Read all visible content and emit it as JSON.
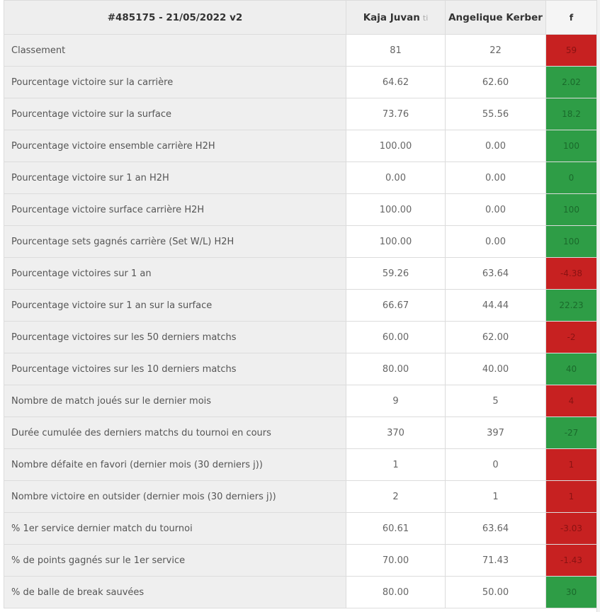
{
  "header": {
    "match": "#485175 - 21/05/2022 v2",
    "player1": "Kaja Juvan",
    "player1_suffix": "ti",
    "player2": "Angelique Kerber",
    "diff": "f"
  },
  "colors": {
    "red": "#c72121",
    "green": "#2e9d46"
  },
  "rows": [
    {
      "label": "Classement",
      "p1": "81",
      "p2": "22",
      "diff": "59",
      "status": "red"
    },
    {
      "label": "Pourcentage victoire sur la carrière",
      "p1": "64.62",
      "p2": "62.60",
      "diff": "2.02",
      "status": "green"
    },
    {
      "label": "Pourcentage victoire sur la surface",
      "p1": "73.76",
      "p2": "55.56",
      "diff": "18.2",
      "status": "green"
    },
    {
      "label": "Pourcentage victoire ensemble carrière H2H",
      "p1": "100.00",
      "p2": "0.00",
      "diff": "100",
      "status": "green"
    },
    {
      "label": "Pourcentage victoire sur 1 an H2H",
      "p1": "0.00",
      "p2": "0.00",
      "diff": "0",
      "status": "green"
    },
    {
      "label": "Pourcentage victoire surface carrière H2H",
      "p1": "100.00",
      "p2": "0.00",
      "diff": "100",
      "status": "green"
    },
    {
      "label": "Pourcentage sets gagnés carrière (Set W/L) H2H",
      "p1": "100.00",
      "p2": "0.00",
      "diff": "100",
      "status": "green"
    },
    {
      "label": "Pourcentage victoires sur 1 an",
      "p1": "59.26",
      "p2": "63.64",
      "diff": "-4.38",
      "status": "red"
    },
    {
      "label": "Pourcentage victoire sur 1 an sur la surface",
      "p1": "66.67",
      "p2": "44.44",
      "diff": "22.23",
      "status": "green"
    },
    {
      "label": "Pourcentage victoires sur les 50 derniers matchs",
      "p1": "60.00",
      "p2": "62.00",
      "diff": "-2",
      "status": "red"
    },
    {
      "label": "Pourcentage victoires sur les 10 derniers matchs",
      "p1": "80.00",
      "p2": "40.00",
      "diff": "40",
      "status": "green"
    },
    {
      "label": "Nombre de match joués sur le dernier mois",
      "p1": "9",
      "p2": "5",
      "diff": "4",
      "status": "red"
    },
    {
      "label": "Durée cumulée des derniers matchs du tournoi en cours",
      "p1": "370",
      "p2": "397",
      "diff": "-27",
      "status": "green"
    },
    {
      "label": "Nombre défaite en favori (dernier mois (30 derniers j))",
      "p1": "1",
      "p2": "0",
      "diff": "1",
      "status": "red"
    },
    {
      "label": "Nombre victoire en outsider (dernier mois (30 derniers j))",
      "p1": "2",
      "p2": "1",
      "diff": "1",
      "status": "red"
    },
    {
      "label": "% 1er service dernier match du tournoi",
      "p1": "60.61",
      "p2": "63.64",
      "diff": "-3.03",
      "status": "red"
    },
    {
      "label": "% de points gagnés sur le 1er service",
      "p1": "70.00",
      "p2": "71.43",
      "diff": "-1.43",
      "status": "red"
    },
    {
      "label": "% de balle de break sauvées",
      "p1": "80.00",
      "p2": "50.00",
      "diff": "30",
      "status": "green"
    }
  ]
}
